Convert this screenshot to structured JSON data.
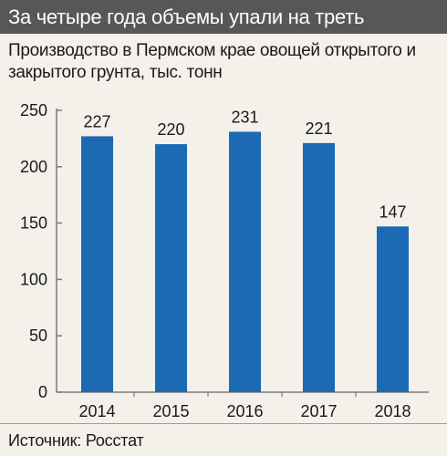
{
  "header": {
    "title": "За четыре года объемы упали на треть",
    "subtitle": "Производство в Пермском крае овощей открытого и закрытого грунта, тыс. тонн"
  },
  "footer": {
    "source": "Источник: Росстат"
  },
  "colors": {
    "bar": "#1b6ab3",
    "title_background": "#575757",
    "panel_background": "#f3f1ea"
  },
  "chart_data": {
    "type": "bar",
    "title": "За четыре года объемы упали на треть",
    "subtitle": "Производство в Пермском крае овощей открытого и закрытого грунта, тыс. тонн",
    "categories": [
      "2014",
      "2015",
      "2016",
      "2017",
      "2018"
    ],
    "values": [
      227,
      220,
      231,
      221,
      147
    ],
    "data_labels": [
      "227",
      "220",
      "231",
      "221",
      "147"
    ],
    "yticks": [
      "0",
      "50",
      "100",
      "150",
      "200",
      "250"
    ],
    "ylim": [
      0,
      250
    ],
    "grid": false,
    "legend": "none"
  }
}
